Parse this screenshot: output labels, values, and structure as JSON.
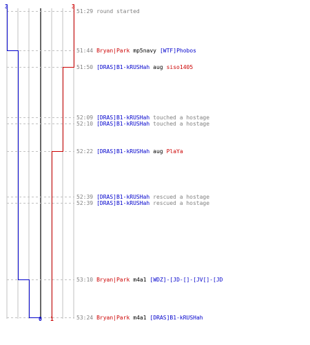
{
  "colors": {
    "team_ct": "#0000cc",
    "team_t": "#cc0000",
    "time": "#808080",
    "action": "#333333",
    "plain": "#000000",
    "grid": "#c0c0c0",
    "center_line": "#666666"
  },
  "score_labels": {
    "ct_top": "3",
    "t_top": "3",
    "ct_bottom": "0",
    "t_bottom": "1"
  },
  "events": [
    {
      "time": "51:29",
      "actor": "",
      "actor_team": "",
      "action": "round started",
      "victim": "",
      "victim_team": ""
    },
    {
      "time": "51:44",
      "actor": "Bryan|Park",
      "actor_team": "t",
      "action": "mp5navy",
      "victim": "[WTF]Phobos",
      "victim_team": "ct"
    },
    {
      "time": "51:50",
      "actor": "[DRAS]B1-kRUSHah",
      "actor_team": "ct",
      "action": "aug",
      "victim": "siso1405",
      "victim_team": "t"
    },
    {
      "time": "52:09",
      "actor": "[DRAS]B1-kRUSHah",
      "actor_team": "ct",
      "action": "touched a hostage",
      "victim": "",
      "victim_team": ""
    },
    {
      "time": "52:10",
      "actor": "[DRAS]B1-kRUSHah",
      "actor_team": "ct",
      "action": "touched a hostage",
      "victim": "",
      "victim_team": ""
    },
    {
      "time": "52:22",
      "actor": "[DRAS]B1-kRUSHah",
      "actor_team": "ct",
      "action": "aug",
      "victim": "PlaYa",
      "victim_team": "t"
    },
    {
      "time": "52:39",
      "actor": "[DRAS]B1-kRUSHah",
      "actor_team": "ct",
      "action": "rescued a hostage",
      "victim": "",
      "victim_team": ""
    },
    {
      "time": "52:39",
      "actor": "[DRAS]B1-kRUSHah",
      "actor_team": "ct",
      "action": "rescued a hostage",
      "victim": "",
      "victim_team": ""
    },
    {
      "time": "53:10",
      "actor": "Bryan|Park",
      "actor_team": "t",
      "action": "m4a1",
      "victim": "[WDZ]-[JD-[]-[JV[]-[JD",
      "victim_team": "ct"
    },
    {
      "time": "53:24",
      "actor": "Bryan|Park",
      "actor_team": "t",
      "action": "m4a1",
      "victim": "[DRAS]B1-kRUSHah",
      "victim_team": "ct"
    }
  ]
}
